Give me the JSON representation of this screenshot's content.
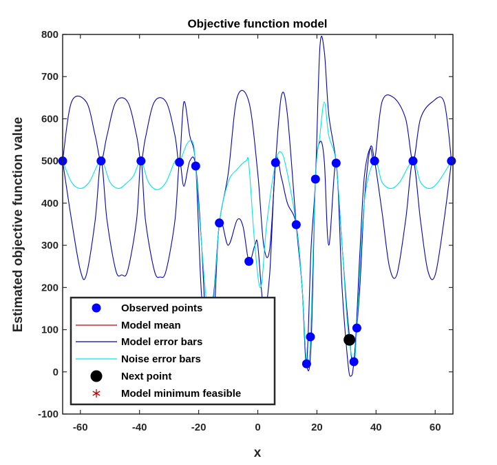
{
  "chart_data": {
    "type": "line",
    "title": "Objective function model",
    "xlabel": "x",
    "ylabel": "Estimated objective function value",
    "xlim": [
      -66,
      66
    ],
    "ylim": [
      -100,
      800
    ],
    "xticks": [
      -60,
      -40,
      -20,
      0,
      20,
      40,
      60
    ],
    "xtick_labels": [
      "-60",
      "-40",
      "-20",
      "0",
      "20",
      "40",
      "60"
    ],
    "yticks": [
      -100,
      0,
      100,
      200,
      300,
      400,
      500,
      600,
      700,
      800
    ],
    "ytick_labels": [
      "-100",
      "0",
      "100",
      "200",
      "300",
      "400",
      "500",
      "600",
      "700",
      "800"
    ],
    "grid": false,
    "legend_position": "bottom-left",
    "colors": {
      "observed": "#0000ff",
      "model_mean": "#c00000",
      "model_error": "#0000b4",
      "noise_error": "#00e6e6",
      "next_point": "#000000",
      "model_min": "#c00000"
    },
    "legend": [
      "Observed points",
      "Model mean",
      "Model error bars",
      "Noise error bars",
      "Next point",
      "Model minimum feasible"
    ],
    "series": [
      {
        "name": "Observed points",
        "kind": "scatter",
        "x": [
          -66,
          -53,
          -39.5,
          -26.5,
          -21,
          -13,
          -3,
          6,
          13,
          16.5,
          17.8,
          19.5,
          26.5,
          32.5,
          33.5,
          39.5,
          52.5,
          65.5
        ],
        "y": [
          500,
          500,
          500,
          497,
          488,
          353,
          262,
          496,
          349,
          19,
          83,
          457,
          495,
          24,
          104,
          500,
          500,
          500
        ]
      },
      {
        "name": "Model error bars (upper)",
        "kind": "line",
        "x": [
          -66,
          -63,
          -58,
          -55,
          -53,
          -51,
          -48,
          -44,
          -41,
          -39.5,
          -38,
          -35,
          -31,
          -28,
          -26.5,
          -25,
          -23,
          -21,
          -19,
          -17,
          -15,
          -13,
          -10,
          -7,
          -3,
          0,
          2,
          4,
          6,
          8,
          10,
          13,
          15,
          16.5,
          18,
          19.5,
          21,
          22.5,
          24,
          26.5,
          28.5,
          30.5,
          32.5,
          34.5,
          36,
          38,
          39.5,
          42,
          46,
          50,
          52.5,
          55,
          59,
          63,
          65.5
        ],
        "y": [
          500,
          640,
          640,
          560,
          500,
          560,
          640,
          640,
          560,
          500,
          555,
          640,
          640,
          560,
          497,
          640,
          560,
          488,
          180,
          150,
          180,
          353,
          470,
          650,
          640,
          470,
          300,
          290,
          496,
          655,
          610,
          349,
          200,
          19,
          290,
          457,
          770,
          760,
          610,
          495,
          300,
          120,
          24,
          280,
          460,
          530,
          500,
          640,
          650,
          600,
          500,
          600,
          640,
          640,
          500
        ]
      },
      {
        "name": "Model error bars (lower)",
        "kind": "line",
        "x": [
          -66,
          -63,
          -60,
          -58,
          -55,
          -53,
          -51,
          -48,
          -46,
          -44,
          -41,
          -39.5,
          -38,
          -35,
          -33,
          -31,
          -28,
          -26.5,
          -25,
          -23,
          -21,
          -19,
          -17,
          -15,
          -13,
          -10,
          -7,
          -5,
          -3,
          -1,
          0,
          2,
          4,
          6,
          8,
          10,
          13,
          15,
          16.5,
          18,
          19.5,
          21,
          22.5,
          24,
          26.5,
          28.5,
          30.5,
          31.5,
          32.5,
          34.5,
          36,
          38,
          39.5,
          42,
          44.5,
          47,
          50,
          52.5,
          55,
          57.5,
          60,
          63,
          65.5
        ],
        "y": [
          500,
          360,
          240,
          230,
          360,
          500,
          360,
          240,
          230,
          240,
          360,
          500,
          360,
          240,
          225,
          240,
          360,
          497,
          440,
          500,
          488,
          300,
          50,
          100,
          353,
          300,
          360,
          345,
          262,
          300,
          300,
          150,
          230,
          496,
          460,
          400,
          349,
          200,
          19,
          60,
          457,
          545,
          500,
          300,
          495,
          200,
          20,
          -10,
          24,
          200,
          400,
          530,
          500,
          380,
          250,
          230,
          360,
          500,
          360,
          240,
          230,
          360,
          500
        ]
      },
      {
        "name": "Noise error bars",
        "kind": "line",
        "x": [
          -66,
          -63,
          -60,
          -57,
          -53,
          -50,
          -47,
          -44,
          -42,
          -39.5,
          -37,
          -34,
          -31,
          -28,
          -26.5,
          -24,
          -22,
          -21,
          -19,
          -17,
          -15,
          -13,
          -10,
          -7,
          -4,
          -3,
          -1,
          1,
          3,
          6,
          8,
          10,
          13,
          15,
          16.5,
          17.8,
          19.5,
          21,
          22.5,
          24,
          26.5,
          28.5,
          30.5,
          32.5,
          33.5,
          36,
          39.5,
          42,
          45,
          48,
          52.5,
          55,
          58,
          61,
          65.5
        ],
        "y": [
          500,
          450,
          435,
          450,
          500,
          450,
          435,
          450,
          465,
          500,
          450,
          432,
          450,
          500,
          497,
          540,
          545,
          488,
          300,
          150,
          170,
          353,
          450,
          480,
          500,
          490,
          300,
          200,
          350,
          496,
          520,
          470,
          349,
          200,
          19,
          83,
          457,
          560,
          640,
          560,
          495,
          300,
          100,
          24,
          104,
          400,
          500,
          450,
          435,
          450,
          500,
          450,
          435,
          450,
          500
        ]
      },
      {
        "name": "Next point",
        "kind": "scatter",
        "x": [
          31
        ],
        "y": [
          76
        ]
      }
    ]
  }
}
